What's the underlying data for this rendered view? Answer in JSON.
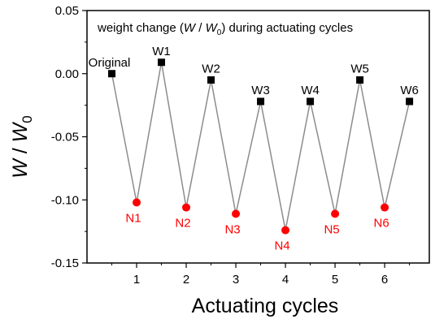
{
  "chart_data": {
    "type": "line",
    "title_parts": [
      "weight change (",
      "W",
      " / ",
      "W",
      "0",
      ") during actuating cycles"
    ],
    "xlabel": "Actuating cycles",
    "ylabel_parts": [
      "W",
      " / ",
      "W",
      "0"
    ],
    "xlim": [
      0,
      6.9
    ],
    "ylim": [
      -0.15,
      0.05
    ],
    "xticks": [
      "1",
      "2",
      "3",
      "4",
      "5",
      "6"
    ],
    "yticks": [
      "0.05",
      "0.00",
      "-0.05",
      "-0.10",
      "-0.15"
    ],
    "grid": false,
    "line_color": "#8c8c8c",
    "colors": {
      "W": "#000000",
      "N": "#ff0000"
    },
    "points": [
      {
        "x": 0.5,
        "y": 0.0,
        "label": "Original",
        "group": "W"
      },
      {
        "x": 1.0,
        "y": -0.102,
        "label": "N1",
        "group": "N"
      },
      {
        "x": 1.5,
        "y": 0.009,
        "label": "W1",
        "group": "W"
      },
      {
        "x": 2.0,
        "y": -0.106,
        "label": "N2",
        "group": "N"
      },
      {
        "x": 2.5,
        "y": -0.005,
        "label": "W2",
        "group": "W"
      },
      {
        "x": 3.0,
        "y": -0.111,
        "label": "N3",
        "group": "N"
      },
      {
        "x": 3.5,
        "y": -0.022,
        "label": "W3",
        "group": "W"
      },
      {
        "x": 4.0,
        "y": -0.124,
        "label": "N4",
        "group": "N"
      },
      {
        "x": 4.5,
        "y": -0.022,
        "label": "W4",
        "group": "W"
      },
      {
        "x": 5.0,
        "y": -0.111,
        "label": "N5",
        "group": "N"
      },
      {
        "x": 5.5,
        "y": -0.005,
        "label": "W5",
        "group": "W"
      },
      {
        "x": 6.0,
        "y": -0.106,
        "label": "N6",
        "group": "N"
      },
      {
        "x": 6.5,
        "y": -0.022,
        "label": "W6",
        "group": "W"
      }
    ]
  }
}
